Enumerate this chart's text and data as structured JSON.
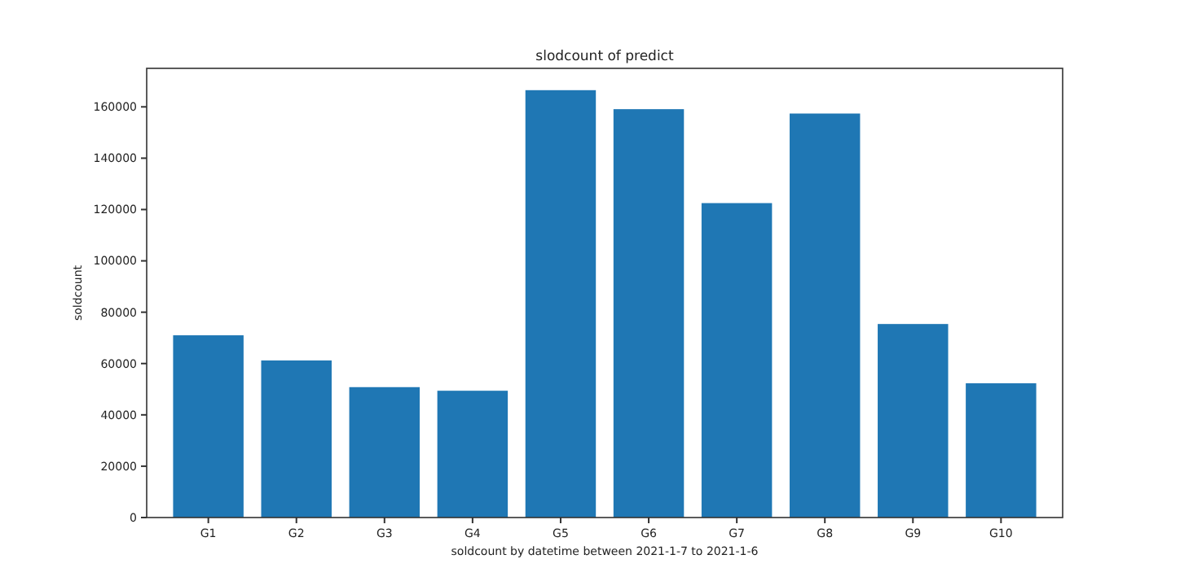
{
  "chart_data": {
    "type": "bar",
    "title": "slodcount of predict",
    "xlabel": "soldcount by datetime between 2021-1-7 to 2021-1-6",
    "ylabel": "soldcount",
    "categories": [
      "G1",
      "G2",
      "G3",
      "G4",
      "G5",
      "G6",
      "G7",
      "G8",
      "G9",
      "G10"
    ],
    "values": [
      71000,
      61200,
      50800,
      49400,
      166500,
      159100,
      122500,
      157400,
      75400,
      52300
    ],
    "color": "#1f77b4",
    "ylim": [
      0,
      175000
    ],
    "yticks": [
      0,
      20000,
      40000,
      60000,
      80000,
      100000,
      120000,
      140000,
      160000
    ],
    "grid": false
  }
}
